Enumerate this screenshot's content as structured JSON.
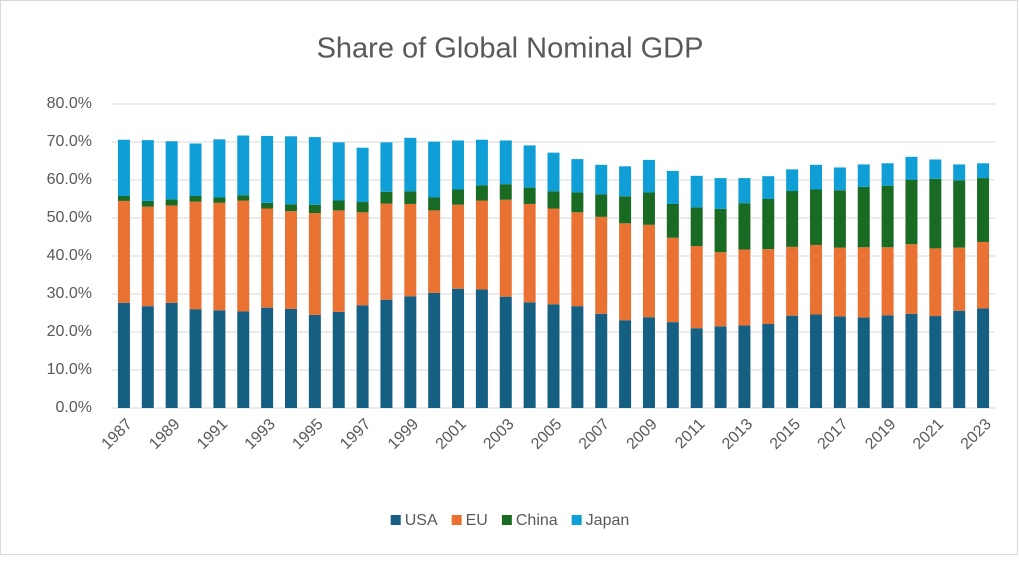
{
  "chart_data": {
    "type": "bar",
    "stacked": true,
    "title": "Share of Global Nominal GDP",
    "categories": [
      "1987",
      null,
      "1989",
      null,
      "1991",
      null,
      "1993",
      null,
      "1995",
      null,
      "1997",
      null,
      "1999",
      null,
      "2001",
      null,
      "2003",
      null,
      "2005",
      null,
      "2007",
      null,
      "2009",
      null,
      "2011",
      null,
      "2013",
      null,
      "2015",
      null,
      "2017",
      null,
      "2019",
      null,
      "2021",
      null,
      "2023"
    ],
    "series": [
      {
        "name": "USA",
        "color": "#156082",
        "values": [
          27.7,
          26.8,
          27.7,
          26.0,
          25.7,
          25.4,
          26.4,
          26.1,
          24.5,
          25.3,
          27.0,
          28.5,
          29.4,
          30.3,
          31.4,
          31.2,
          29.3,
          27.8,
          27.3,
          26.8,
          24.8,
          23.1,
          23.9,
          22.6,
          21.0,
          21.5,
          21.7,
          22.1,
          24.3,
          24.6,
          24.1,
          23.8,
          24.4,
          24.8,
          24.2,
          25.6,
          26.2
        ]
      },
      {
        "name": "EU",
        "color": "#e97132",
        "values": [
          26.8,
          26.2,
          25.6,
          28.3,
          28.3,
          29.2,
          26.1,
          25.7,
          26.8,
          26.7,
          24.5,
          25.3,
          24.3,
          21.7,
          22.1,
          23.4,
          25.5,
          25.9,
          25.2,
          24.7,
          25.5,
          25.5,
          24.3,
          22.2,
          21.6,
          19.5,
          20.0,
          19.7,
          18.1,
          18.3,
          18.1,
          18.5,
          17.9,
          18.3,
          17.8,
          16.6,
          17.5
        ]
      },
      {
        "name": "China",
        "color": "#196b24",
        "values": [
          1.3,
          1.5,
          1.6,
          1.5,
          1.4,
          1.4,
          1.5,
          1.8,
          2.2,
          2.6,
          2.7,
          3.1,
          3.3,
          3.4,
          4.0,
          4.0,
          4.1,
          4.3,
          4.5,
          5.2,
          5.9,
          7.1,
          8.5,
          8.9,
          10.2,
          11.4,
          12.2,
          13.2,
          14.7,
          14.6,
          15.1,
          15.9,
          16.2,
          17.0,
          18.3,
          17.7,
          16.8
        ]
      },
      {
        "name": "Japan",
        "color": "#0f9ed5",
        "values": [
          14.8,
          16.0,
          15.3,
          13.8,
          15.3,
          15.7,
          17.6,
          17.9,
          17.8,
          15.3,
          14.3,
          13.0,
          14.1,
          14.7,
          12.9,
          12.0,
          11.5,
          11.1,
          10.2,
          8.8,
          7.8,
          7.9,
          8.6,
          8.7,
          8.3,
          8.1,
          6.6,
          6.0,
          5.7,
          6.5,
          6.0,
          5.9,
          5.9,
          6.0,
          5.1,
          4.2,
          3.9
        ]
      }
    ],
    "ylim": [
      0,
      80
    ],
    "yticks": [
      {
        "value": 0,
        "label": "0.0%"
      },
      {
        "value": 10,
        "label": "10.0%"
      },
      {
        "value": 20,
        "label": "20.0%"
      },
      {
        "value": 30,
        "label": "30.0%"
      },
      {
        "value": 40,
        "label": "40.0%"
      },
      {
        "value": 50,
        "label": "50.0%"
      },
      {
        "value": 60,
        "label": "60.0%"
      },
      {
        "value": 70,
        "label": "70.0%"
      },
      {
        "value": 80,
        "label": "80.0%"
      }
    ],
    "grid": true,
    "legend": "bottom"
  }
}
